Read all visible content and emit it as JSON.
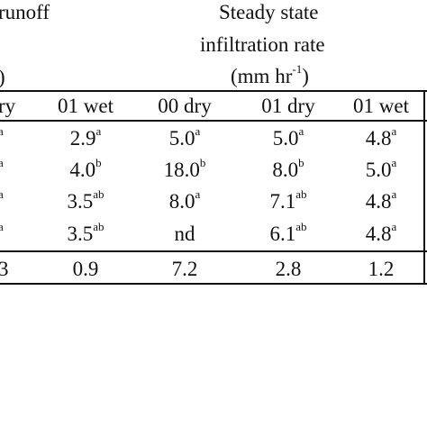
{
  "header": {
    "runoff_fragment": "runoff",
    "left_paren_fragment": ")",
    "steady_line1": "Steady state",
    "steady_line2": "infiltration rate",
    "steady_unit_pre": "(mm hr",
    "steady_unit_sup": "-1",
    "steady_unit_post": ")"
  },
  "columns": [
    {
      "label": "ry"
    },
    {
      "label": "01 wet"
    },
    {
      "label": "00 dry"
    },
    {
      "label": "01 dry"
    },
    {
      "label": "01 wet"
    }
  ],
  "rows": [
    {
      "cells": [
        {
          "value": "",
          "sup": "a"
        },
        {
          "value": "2.9",
          "sup": "a"
        },
        {
          "value": "5.0",
          "sup": "a"
        },
        {
          "value": "5.0",
          "sup": "a"
        },
        {
          "value": "4.8",
          "sup": "a"
        }
      ]
    },
    {
      "cells": [
        {
          "value": "",
          "sup": "a"
        },
        {
          "value": "4.0",
          "sup": "b"
        },
        {
          "value": "18.0",
          "sup": "b"
        },
        {
          "value": "8.0",
          "sup": "b"
        },
        {
          "value": "5.0",
          "sup": "a"
        }
      ]
    },
    {
      "cells": [
        {
          "value": "",
          "sup": "a"
        },
        {
          "value": "3.5",
          "sup": "ab"
        },
        {
          "value": "8.0",
          "sup": "a"
        },
        {
          "value": "7.1",
          "sup": "ab"
        },
        {
          "value": "4.8",
          "sup": "a"
        }
      ]
    },
    {
      "cells": [
        {
          "value": "",
          "sup": "a"
        },
        {
          "value": "3.5",
          "sup": "ab"
        },
        {
          "value": "nd",
          "sup": ""
        },
        {
          "value": "6.1",
          "sup": "ab"
        },
        {
          "value": "4.8",
          "sup": "a"
        }
      ]
    }
  ],
  "lsd_row": {
    "cells": [
      "3",
      "0.9",
      "7.2",
      "2.8",
      "1.2"
    ]
  }
}
